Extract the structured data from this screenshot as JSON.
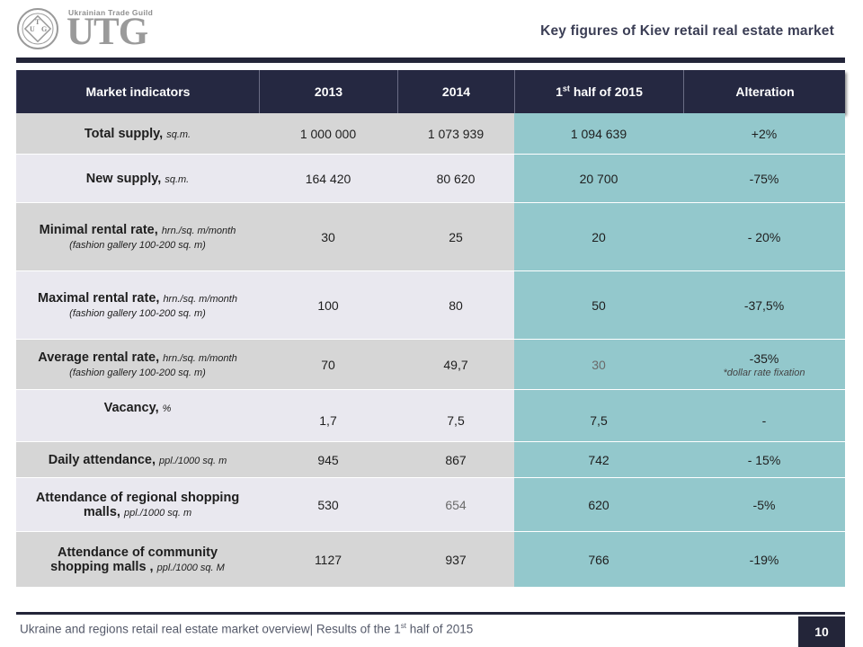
{
  "header": {
    "guild_name": "Ukrainian Trade Guild",
    "logo_mark": "UTG",
    "seal_letters": [
      "U",
      "T",
      "G"
    ],
    "title": "Key figures of Kiev retail real estate market"
  },
  "table": {
    "columns": [
      "Market indicators",
      "2013",
      "2014",
      "1",
      "Alteration"
    ],
    "col3_sup": "st",
    "col3_rest": " half of 2015",
    "rows": [
      {
        "main": "Total supply, ",
        "unit": "sq.m.",
        "v2013": "1 000 000",
        "v2014": "1 073 939",
        "vH1": "1 094 639",
        "alt": "+2%"
      },
      {
        "main": "New supply, ",
        "unit": "sq.m.",
        "v2013": "164 420",
        "v2014": "80 620",
        "vH1": "20 700",
        "alt": "-75%"
      },
      {
        "main": "Minimal rental rate, ",
        "unit": "hrn./sq. m/month (fashion gallery 100-200 sq. m)",
        "v2013": "30",
        "v2014": "25",
        "vH1": "20",
        "alt": "- 20%"
      },
      {
        "main": "Maximal rental rate, ",
        "unit": "hrn./sq. m/month (fashion gallery 100-200 sq. m)",
        "v2013": "100",
        "v2014": "80",
        "vH1": "50",
        "alt": "-37,5%"
      },
      {
        "main": "Average rental rate, ",
        "unit": "hrn./sq. m/month (fashion gallery 100-200 sq. m)",
        "v2013": "70",
        "v2014": "49,7",
        "vH1": "30",
        "alt": "-35%",
        "alt_note": "*dollar rate fixation"
      },
      {
        "main": "Vacancy, ",
        "unit": "%",
        "v2013": "1,7",
        "v2014": "7,5",
        "vH1": "7,5",
        "alt": "-"
      },
      {
        "main": "Daily attendance, ",
        "unit": "ppl./1000 sq. m",
        "v2013": "945",
        "v2014": "867",
        "vH1": "742",
        "alt": "- 15%"
      },
      {
        "main": "Attendance of regional shopping malls, ",
        "unit": "ppl./1000 sq. m",
        "v2013": "530",
        "v2014": "654",
        "vH1": "620",
        "alt": "-5%"
      },
      {
        "main": "Attendance of community shopping malls , ",
        "unit": "ppl./1000 sq. M",
        "v2013": "1127",
        "v2014": "937",
        "vH1": "766",
        "alt": "-19%"
      }
    ]
  },
  "footer": {
    "text_before": "Ukraine and regions retail real estate market overview| Results of the 1",
    "text_sup": "st",
    "text_after": " half of 2015",
    "page_number": "10"
  },
  "colors": {
    "navy": "#232539",
    "teal_highlight": "#93c8cc",
    "row_gray": "#d6d6d6",
    "row_light": "#e9e8ef"
  }
}
